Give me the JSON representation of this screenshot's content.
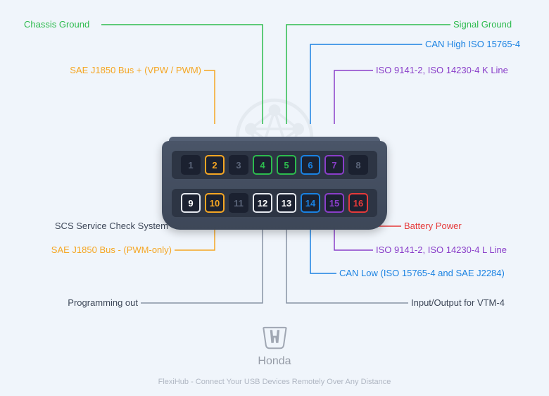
{
  "colors": {
    "green": "#2dbb4e",
    "orange": "#f5a623",
    "blue": "#1a82e2",
    "purple": "#8a3ec9",
    "red": "#e53a3a",
    "dark": "#3d4758"
  },
  "pins_top": [
    {
      "n": "1",
      "active": false
    },
    {
      "n": "2",
      "active": true,
      "border": "orange",
      "text": "orange"
    },
    {
      "n": "3",
      "active": false
    },
    {
      "n": "4",
      "active": true,
      "border": "green",
      "text": "green"
    },
    {
      "n": "5",
      "active": true,
      "border": "green",
      "text": "green"
    },
    {
      "n": "6",
      "active": true,
      "border": "blue",
      "text": "blue"
    },
    {
      "n": "7",
      "active": true,
      "border": "purple",
      "text": "purple"
    },
    {
      "n": "8",
      "active": false
    }
  ],
  "pins_bottom": [
    {
      "n": "9",
      "active": true,
      "border": "white",
      "text": "white",
      "borderColor": "#e6e9ef"
    },
    {
      "n": "10",
      "active": true,
      "border": "orange",
      "text": "orange"
    },
    {
      "n": "11",
      "active": false
    },
    {
      "n": "12",
      "active": true,
      "border": "white",
      "text": "white",
      "borderColor": "#e6e9ef"
    },
    {
      "n": "13",
      "active": true,
      "border": "white",
      "text": "white",
      "borderColor": "#e6e9ef"
    },
    {
      "n": "14",
      "active": true,
      "border": "blue",
      "text": "blue"
    },
    {
      "n": "15",
      "active": true,
      "border": "purple",
      "text": "purple"
    },
    {
      "n": "16",
      "active": true,
      "border": "red",
      "text": "red"
    }
  ],
  "labels": {
    "chassis_ground": "Chassis Ground",
    "signal_ground": "Signal Ground",
    "can_high": "CAN High ISO 15765-4",
    "sae_plus": "SAE J1850 Bus + (VPW / PWM)",
    "iso_k": "ISO 9141-2, ISO 14230-4 K Line",
    "scs": "SCS Service Check System",
    "battery": "Battery Power",
    "sae_minus": "SAE J1850 Bus - (PWM-only)",
    "iso_l": "ISO 9141-2, ISO 14230-4 L Line",
    "can_low": "CAN Low (ISO 15765-4 and SAE J2284)",
    "prog_out": "Programming out",
    "vtm4": "Input/Output for VTM-4"
  },
  "brand": "Honda",
  "tagline": "FlexiHub - Connect Your USB Devices Remotely Over Any Distance"
}
